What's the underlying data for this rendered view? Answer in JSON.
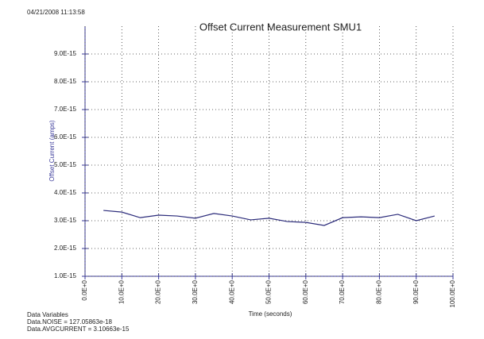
{
  "chart_data": {
    "type": "line",
    "timestamp": "04/21/2008 11:13:58",
    "title": "Offset Current Measurement SMU1",
    "x_label": "Time (seconds)",
    "y_label": "Offset Current (amps)",
    "notes": [
      "Data Variables",
      "Data.NOISE = 127.05863e-18",
      "Data.AVGCURRENT = 3.10663e-15"
    ],
    "x": [
      5,
      10,
      15,
      20,
      25,
      30,
      35,
      40,
      45,
      50,
      55,
      60,
      65,
      70,
      75,
      80,
      85,
      90,
      95
    ],
    "series": [
      {
        "color": "#2b2b7a",
        "values": [
          3.37e-15,
          3.31e-15,
          3.11e-15,
          3.2e-15,
          3.17e-15,
          3.09e-15,
          3.26e-15,
          3.17e-15,
          3.03e-15,
          3.09e-15,
          2.97e-15,
          2.94e-15,
          2.83e-15,
          3.11e-15,
          3.14e-15,
          3.11e-15,
          3.23e-15,
          3e-15,
          3.17e-15
        ]
      }
    ],
    "xlim": [
      0,
      100
    ],
    "xticks": [
      {
        "value": 0,
        "label": "0.0E+0"
      },
      {
        "value": 10,
        "label": "10.0E+0"
      },
      {
        "value": 20,
        "label": "20.0E+0"
      },
      {
        "value": 30,
        "label": "30.0E+0"
      },
      {
        "value": 40,
        "label": "40.0E+0"
      },
      {
        "value": 50,
        "label": "50.0E+0"
      },
      {
        "value": 60,
        "label": "60.0E+0"
      },
      {
        "value": 70,
        "label": "70.0E+0"
      },
      {
        "value": 80,
        "label": "80.0E+0"
      },
      {
        "value": 90,
        "label": "90.0E+0"
      },
      {
        "value": 100,
        "label": "100.0E+0"
      }
    ],
    "ylim": [
      1e-15,
      1e-14
    ],
    "yticks": [
      {
        "value": 1e-15,
        "label": "1.0E-15"
      },
      {
        "value": 2e-15,
        "label": "2.0E-15"
      },
      {
        "value": 3e-15,
        "label": "3.0E-15"
      },
      {
        "value": 4e-15,
        "label": "4.0E-15"
      },
      {
        "value": 5e-15,
        "label": "5.0E-15"
      },
      {
        "value": 6e-15,
        "label": "6.0E-15"
      },
      {
        "value": 7e-15,
        "label": "7.0E-15"
      },
      {
        "value": 8e-15,
        "label": "8.0E-15"
      },
      {
        "value": 9e-15,
        "label": "9.0E-15"
      }
    ],
    "grid": true
  }
}
